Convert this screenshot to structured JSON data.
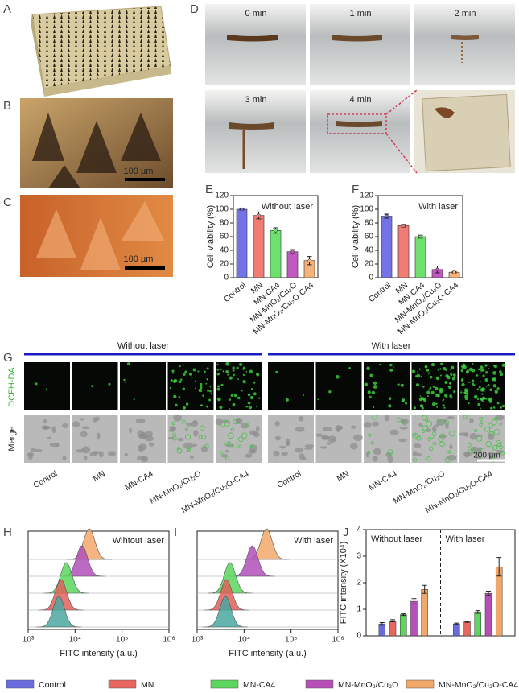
{
  "panels": {
    "labels": [
      "A",
      "B",
      "C",
      "D",
      "E",
      "F",
      "G",
      "H",
      "I",
      "J"
    ],
    "B": {
      "scale_bar": "100 µm"
    },
    "C": {
      "scale_bar": "100 µm"
    },
    "D": {
      "frames": [
        "0 min",
        "1 min",
        "2 min",
        "3 min",
        "4 min"
      ]
    },
    "G": {
      "groups": [
        "Without laser",
        "With laser"
      ],
      "rows": [
        "DCFH-DA",
        "Merge"
      ],
      "columns": [
        "Control",
        "MN",
        "MN-CA4",
        "MN-MnO₂/Cu₂O",
        "MN-MnO₂/Cu₂O-CA4"
      ],
      "scale_bar": "200 µm"
    }
  },
  "chart_data": [
    {
      "type": "bar",
      "ylabel": "Cell viability (%)",
      "annotation": "Without laser",
      "categories": [
        "Control",
        "MN",
        "MN-CA4",
        "MN-MnO₂/Cu₂O",
        "MN-MnO₂/Cu₂O-CA4"
      ],
      "values": [
        100,
        91,
        69,
        38,
        25
      ],
      "errors": [
        1,
        5,
        4,
        3,
        6
      ],
      "colors": [
        "#7373e6",
        "#f07c74",
        "#6ee06e",
        "#c05ac0",
        "#f5b27a"
      ],
      "ylim": [
        0,
        120
      ],
      "yticks": [
        0,
        20,
        40,
        60,
        80,
        100,
        120
      ]
    },
    {
      "type": "bar",
      "ylabel": "Cell viability (%)",
      "annotation": "With laser",
      "categories": [
        "Control",
        "MN",
        "MN-CA4",
        "MN-MnO₂/Cu₂O",
        "MN-MnO₂/Cu₂O-CA4"
      ],
      "values": [
        90,
        76,
        60,
        12,
        8
      ],
      "errors": [
        3,
        2,
        2,
        5,
        1
      ],
      "colors": [
        "#7373e6",
        "#f07c74",
        "#6ee06e",
        "#c05ac0",
        "#f5b27a"
      ],
      "ylim": [
        0,
        120
      ],
      "yticks": [
        0,
        20,
        40,
        60,
        80,
        100,
        120
      ]
    },
    {
      "type": "ridgeline",
      "xlabel": "FITC intensity (a.u.)",
      "annotation": "Wihtout laser",
      "xscale": "log",
      "xlim": [
        1000,
        1000000
      ],
      "xticks": [
        {
          "value": 1000,
          "label": "10³"
        },
        {
          "value": 10000,
          "label": "10⁴"
        },
        {
          "value": 100000,
          "label": "10⁵"
        },
        {
          "value": 1000000,
          "label": "10⁶"
        }
      ],
      "values": [
        4500,
        5000,
        6500,
        14000,
        20000
      ],
      "colors": [
        "#4aa8a0",
        "#e0605a",
        "#5cd65c",
        "#b050b8",
        "#f2a86a"
      ]
    },
    {
      "type": "ridgeline",
      "xlabel": "FITC intensity (a.u.)",
      "annotation": "With laser",
      "xscale": "log",
      "xlim": [
        1000,
        1000000
      ],
      "xticks": [
        {
          "value": 1000,
          "label": "10³"
        },
        {
          "value": 10000,
          "label": "10⁴"
        },
        {
          "value": 100000,
          "label": "10⁵"
        },
        {
          "value": 1000000,
          "label": "10⁶"
        }
      ],
      "values": [
        4000,
        4200,
        5000,
        15000,
        30000
      ],
      "colors": [
        "#4aa8a0",
        "#e0605a",
        "#5cd65c",
        "#b050b8",
        "#f2a86a"
      ]
    },
    {
      "type": "grouped_bar",
      "ylabel": "FITC intensity (X10⁴)",
      "annotations": [
        "Without laser",
        "With laser"
      ],
      "ylim": [
        0,
        4
      ],
      "yticks": [
        0,
        1,
        2,
        3,
        4
      ],
      "series": [
        {
          "name": "Control",
          "color": "#6b6be0",
          "values": [
            0.45,
            0.45
          ],
          "errors": [
            0.05,
            0.03
          ]
        },
        {
          "name": "MN",
          "color": "#e8665e",
          "values": [
            0.57,
            0.53
          ],
          "errors": [
            0.04,
            0.02
          ]
        },
        {
          "name": "MN-CA4",
          "color": "#5cd65c",
          "values": [
            0.8,
            0.9
          ],
          "errors": [
            0.03,
            0.05
          ]
        },
        {
          "name": "MN-MnO₂/Cu₂O",
          "color": "#b84fb8",
          "values": [
            1.3,
            1.6
          ],
          "errors": [
            0.1,
            0.08
          ]
        },
        {
          "name": "MN-MnO₂/Cu₂O-CA4",
          "color": "#f2a86a",
          "values": [
            1.75,
            2.6
          ],
          "errors": [
            0.15,
            0.35
          ]
        }
      ]
    }
  ]
}
